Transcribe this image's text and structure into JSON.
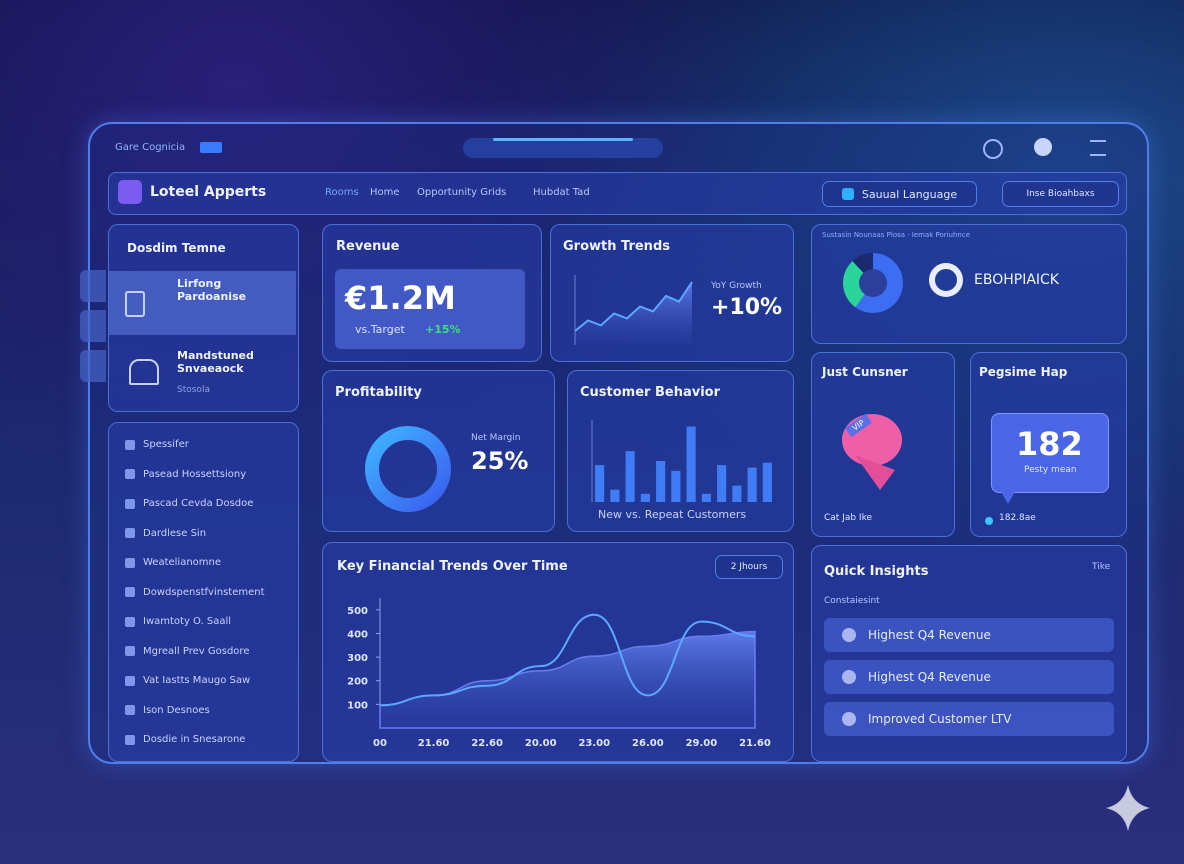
{
  "app": {
    "brand": "Gare Cognicia",
    "name": "Loteel Apperts",
    "nav": [
      "Rooms",
      "Home",
      "Opportunity Grids",
      "Hubdat Tad"
    ],
    "language": "Sauual Language",
    "account": "Inse Bioahbaxs"
  },
  "sidebar": {
    "title": "Dosdim Temne",
    "items": [
      {
        "title": "Lirfong Pardoanise"
      },
      {
        "title": "Mandstuned Snvaeaock",
        "subtitle": "Stosola"
      }
    ],
    "menu": [
      "Spessifer",
      "Pasead Hossettsiony",
      "Pascad Cevda Dosdoe",
      "Dardlese Sin",
      "Weatelianomne",
      "Dowdspenstfvinstement",
      "Iwamtoty O. Saall",
      "Mgreall Prev Gosdore",
      "Vat Iastts Maugo Saw",
      "Ison Desnoes",
      "Dosdie in Snesarone"
    ]
  },
  "revenue": {
    "title": "Revenue",
    "value": "€1.2M",
    "target_label": "vs.Target",
    "target_change": "+15%"
  },
  "growth": {
    "title": "Growth Trends",
    "metric_label": "YoY Growth",
    "metric_value": "+10%",
    "values": [
      20,
      35,
      28,
      45,
      38,
      55,
      48,
      70,
      62,
      90
    ],
    "ylim": [
      0,
      100
    ],
    "color": "#5aa8ff"
  },
  "profitability": {
    "title": "Profitability",
    "metric_label": "Net Margin",
    "metric_value": "25%"
  },
  "customer_behavior": {
    "title": "Customer Behavior",
    "caption": "New vs. Repeat Customers",
    "values": [
      45,
      15,
      62,
      10,
      50,
      38,
      92,
      10,
      45,
      20,
      42,
      48
    ],
    "ylim": [
      0,
      100
    ],
    "color": "#3f7cf5"
  },
  "segments": {
    "header": "Sustasin Nounaas Plosa · Iemak Poriuhnce",
    "label": "EBOHPIAICK",
    "values": [
      60,
      28,
      12
    ],
    "colors": [
      "#3d6df2",
      "#2bd49a",
      "#1b2a6e"
    ]
  },
  "customer": {
    "title": "Just Cunsner",
    "tag": "VIP",
    "footer": "Cat Jab Ike"
  },
  "heatmap": {
    "title": "Pegsime Hap",
    "value": "182",
    "sublabel": "Pesty mean",
    "footer": "182.8ae"
  },
  "financial": {
    "title": "Key Financial Trends Over Time",
    "range": "2 Jhours",
    "categories": [
      "00",
      "21.60",
      "22.60",
      "20.00",
      "23.00",
      "26.00",
      "29.00",
      "21.60"
    ],
    "ylim": [
      0,
      550
    ],
    "yticks": [
      100,
      200,
      300,
      400,
      500
    ],
    "series": [
      {
        "color": "#5aa8ff",
        "values": [
          96,
          138,
          179,
          262,
          479,
          138,
          450,
          388
        ]
      },
      {
        "color": "#6a7cf2",
        "values": [
          96,
          138,
          200,
          242,
          304,
          346,
          388,
          408
        ]
      }
    ]
  },
  "insights": {
    "title": "Quick Insights",
    "action": "Tike",
    "subtitle": "Constaiesint",
    "items": [
      "Highest Q4 Revenue",
      "Highest Q4 Revenue",
      "Improved Customer LTV"
    ]
  }
}
